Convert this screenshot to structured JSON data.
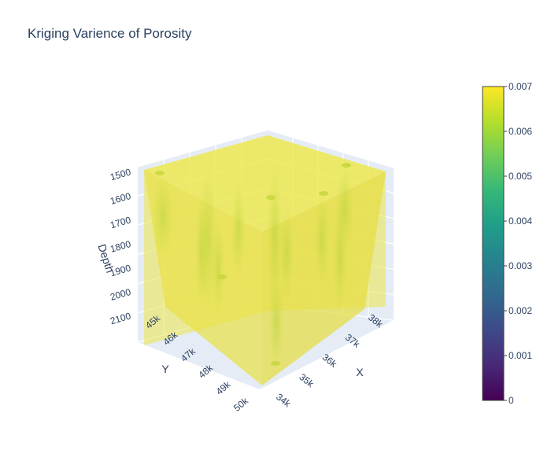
{
  "chart_data": {
    "type": "volume",
    "title": "Kriging Varience of Porosity",
    "axes": {
      "x": {
        "title": "X",
        "ticks": [
          "34k",
          "35k",
          "36k",
          "37k",
          "38k"
        ]
      },
      "y": {
        "title": "Y",
        "ticks": [
          "45k",
          "46k",
          "47k",
          "48k",
          "49k",
          "50k"
        ]
      },
      "z": {
        "title": "Depth",
        "ticks": [
          "1500",
          "1600",
          "1700",
          "1800",
          "1900",
          "2000",
          "2100"
        ],
        "reversed": true
      }
    },
    "colorbar": {
      "colorscale": "Viridis",
      "range": [
        0,
        0.007
      ],
      "ticks": [
        "0",
        "0.001",
        "0.002",
        "0.003",
        "0.004",
        "0.005",
        "0.006",
        "0.007"
      ],
      "colors": [
        "#440154",
        "#482878",
        "#3e4989",
        "#31688e",
        "#26828e",
        "#1f9e89",
        "#35b779",
        "#6ece58",
        "#b5de2b",
        "#fde725"
      ]
    },
    "volume_color": "#ede84a",
    "low_variance_color": "#c3d63a"
  }
}
